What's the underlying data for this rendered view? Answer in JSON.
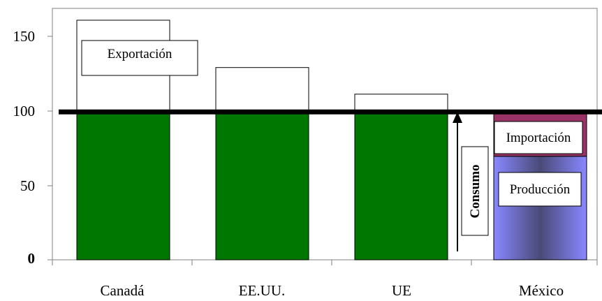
{
  "chart_data": {
    "type": "bar",
    "categories": [
      "Canadá",
      "EE.UU.",
      "UE",
      "México"
    ],
    "series": [
      {
        "values": [
          100,
          100,
          100,
          70
        ]
      },
      {
        "values": [
          62,
          30,
          12,
          0
        ]
      },
      {
        "values": [
          0,
          0,
          0,
          30
        ]
      }
    ],
    "reference_line": 100,
    "ylim": [
      0,
      170
    ],
    "yticks": [
      "0",
      "50",
      "100",
      "150"
    ],
    "annotations": {
      "exportacion": "Exportación",
      "importacion": "Importación",
      "produccion": "Producción",
      "consumo": "Consumo"
    },
    "colors": {
      "production_green": "#007700",
      "export_fill": "#ffffff",
      "import_fill": "#993366",
      "mexico_production": "#8888ff",
      "mexico_production_center": "#4a4a78",
      "reference_line": "#000000"
    },
    "grid": false
  }
}
